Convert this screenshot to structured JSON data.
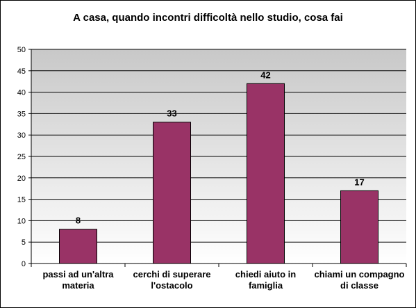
{
  "chart_data": {
    "type": "bar",
    "title": "A casa, quando incontri difficoltà nello studio, cosa fai",
    "xlabel": "",
    "ylabel": "",
    "ylim": [
      0,
      50
    ],
    "yticks": [
      0,
      5,
      10,
      15,
      20,
      25,
      30,
      35,
      40,
      45,
      50
    ],
    "grid": true,
    "legend": "none",
    "categories": [
      [
        "passi ad un'altra",
        "materia"
      ],
      [
        "cerchi di superare",
        "l'ostacolo"
      ],
      [
        "chiedi aiuto in",
        "famiglia"
      ],
      [
        "chiami un compagno",
        "di classe"
      ]
    ],
    "series": [
      {
        "values": [
          8,
          33,
          42,
          17
        ],
        "data_labels": [
          "8",
          "33",
          "42",
          "17"
        ]
      }
    ],
    "colors": {
      "bar_fill": "#993366",
      "bar_stroke": "#000000",
      "plot_bg_top": "#c8c8c8",
      "plot_bg_bottom": "#ffffff",
      "gridline": "#000000"
    }
  }
}
